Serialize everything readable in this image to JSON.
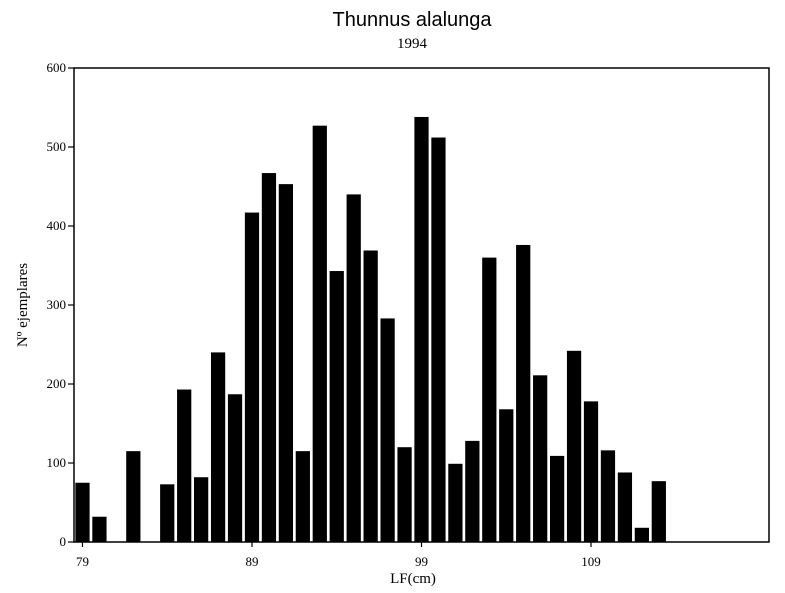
{
  "chart_data": {
    "type": "bar",
    "title": "Thunnus alalunga",
    "subtitle": "1994",
    "xlabel": "LF(cm)",
    "ylabel": "Nº ejemplares",
    "x": [
      79,
      80,
      81,
      82,
      83,
      84,
      85,
      86,
      87,
      88,
      89,
      90,
      91,
      92,
      93,
      94,
      95,
      96,
      97,
      98,
      99,
      100,
      101,
      102,
      103,
      104,
      105,
      106,
      107,
      108,
      109,
      110,
      111,
      112,
      113,
      114,
      115,
      116,
      117,
      118,
      119
    ],
    "values": [
      75,
      32,
      0,
      115,
      0,
      73,
      193,
      82,
      240,
      187,
      417,
      467,
      453,
      115,
      527,
      343,
      440,
      369,
      283,
      120,
      538,
      512,
      99,
      128,
      360,
      168,
      376,
      211,
      109,
      242,
      178,
      116,
      88,
      18,
      77,
      0,
      0,
      0,
      0,
      0,
      0
    ],
    "xticks": [
      79,
      89,
      99,
      109
    ],
    "yticks": [
      0,
      100,
      200,
      300,
      400,
      500,
      600
    ],
    "ylim": [
      0,
      600
    ],
    "xlim": [
      78.5,
      119.5
    ],
    "grid": false,
    "legend": "none",
    "bar_color": "#000000"
  }
}
